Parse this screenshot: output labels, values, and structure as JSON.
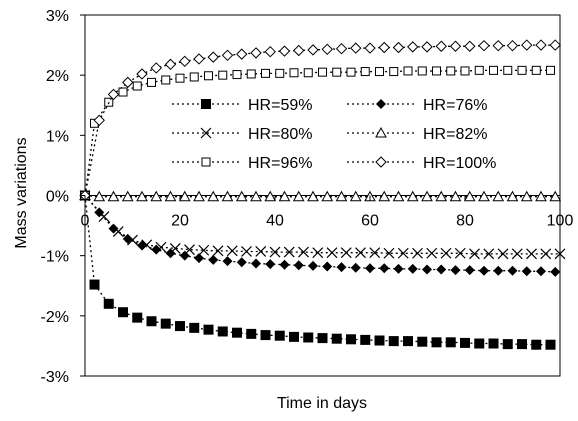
{
  "chart_data": {
    "type": "scatter",
    "title": "",
    "xlabel": "Time in days",
    "ylabel": "Mass variations",
    "xlim": [
      0,
      100
    ],
    "ylim": [
      -3,
      3
    ],
    "x_ticks": [
      0,
      20,
      40,
      60,
      80,
      100
    ],
    "x_tick_labels": [
      "0",
      "20",
      "40",
      "60",
      "80",
      "100"
    ],
    "y_ticks": [
      3,
      2,
      1,
      0,
      -1,
      -2,
      -3
    ],
    "y_tick_labels": [
      "3%",
      "2%",
      "1%",
      "0%",
      "-1%",
      "-2%",
      "-3%"
    ],
    "grid": false,
    "legend_position": "center",
    "series": [
      {
        "name": "HR=59%",
        "marker": "filled-square",
        "x": [
          0,
          2,
          5,
          8,
          11,
          14,
          17,
          20,
          23,
          26,
          29,
          32,
          35,
          38,
          41,
          44,
          47,
          50,
          53,
          56,
          59,
          62,
          65,
          68,
          71,
          74,
          77,
          80,
          83,
          86,
          89,
          92,
          95,
          98
        ],
        "y": [
          0,
          -1.48,
          -1.8,
          -1.94,
          -2.03,
          -2.09,
          -2.13,
          -2.17,
          -2.2,
          -2.23,
          -2.26,
          -2.28,
          -2.3,
          -2.32,
          -2.33,
          -2.35,
          -2.36,
          -2.37,
          -2.38,
          -2.39,
          -2.4,
          -2.41,
          -2.42,
          -2.42,
          -2.43,
          -2.44,
          -2.44,
          -2.45,
          -2.46,
          -2.46,
          -2.47,
          -2.47,
          -2.48,
          -2.48
        ]
      },
      {
        "name": "HR=76%",
        "marker": "filled-diamond",
        "x": [
          0,
          3,
          6,
          9,
          12,
          15,
          18,
          21,
          24,
          27,
          30,
          33,
          36,
          39,
          42,
          45,
          48,
          51,
          54,
          57,
          60,
          63,
          66,
          69,
          72,
          75,
          78,
          81,
          84,
          87,
          90,
          93,
          96,
          99
        ],
        "y": [
          0,
          -0.28,
          -0.55,
          -0.72,
          -0.83,
          -0.9,
          -0.96,
          -1.0,
          -1.04,
          -1.07,
          -1.09,
          -1.11,
          -1.13,
          -1.14,
          -1.15,
          -1.16,
          -1.17,
          -1.18,
          -1.19,
          -1.2,
          -1.21,
          -1.21,
          -1.22,
          -1.22,
          -1.23,
          -1.23,
          -1.24,
          -1.24,
          -1.25,
          -1.25,
          -1.25,
          -1.26,
          -1.26,
          -1.27
        ]
      },
      {
        "name": "HR=80%",
        "marker": "x",
        "x": [
          0,
          4,
          7,
          10,
          13,
          16,
          19,
          22,
          25,
          28,
          31,
          34,
          37,
          40,
          43,
          46,
          49,
          52,
          55,
          58,
          61,
          64,
          67,
          70,
          73,
          76,
          79,
          82,
          85,
          88,
          91,
          94,
          97,
          100
        ],
        "y": [
          0,
          -0.35,
          -0.6,
          -0.74,
          -0.82,
          -0.86,
          -0.88,
          -0.9,
          -0.91,
          -0.92,
          -0.92,
          -0.93,
          -0.93,
          -0.94,
          -0.94,
          -0.94,
          -0.95,
          -0.95,
          -0.95,
          -0.95,
          -0.95,
          -0.96,
          -0.96,
          -0.96,
          -0.96,
          -0.96,
          -0.96,
          -0.97,
          -0.97,
          -0.97,
          -0.97,
          -0.97,
          -0.97,
          -0.97
        ]
      },
      {
        "name": "HR=82%",
        "marker": "open-triangle",
        "x": [
          0,
          3,
          6,
          9,
          12,
          15,
          18,
          21,
          24,
          27,
          30,
          33,
          36,
          39,
          42,
          45,
          48,
          51,
          54,
          57,
          60,
          63,
          66,
          69,
          72,
          75,
          78,
          81,
          84,
          87,
          90,
          93,
          96,
          99
        ],
        "y": [
          0,
          -0.02,
          -0.02,
          -0.02,
          -0.02,
          -0.02,
          -0.02,
          -0.02,
          -0.02,
          -0.02,
          -0.02,
          -0.02,
          -0.02,
          -0.02,
          -0.02,
          -0.02,
          -0.02,
          -0.02,
          -0.02,
          -0.02,
          -0.02,
          -0.02,
          -0.02,
          -0.02,
          -0.02,
          -0.02,
          -0.02,
          -0.02,
          -0.02,
          -0.02,
          -0.02,
          -0.02,
          -0.02,
          -0.02
        ]
      },
      {
        "name": "HR=96%",
        "marker": "open-square",
        "x": [
          0,
          2,
          5,
          8,
          11,
          14,
          17,
          20,
          23,
          26,
          29,
          32,
          35,
          38,
          41,
          44,
          47,
          50,
          53,
          56,
          59,
          62,
          65,
          68,
          71,
          74,
          77,
          80,
          83,
          86,
          89,
          92,
          95,
          98
        ],
        "y": [
          0,
          1.2,
          1.55,
          1.72,
          1.82,
          1.88,
          1.92,
          1.95,
          1.97,
          1.99,
          2.0,
          2.01,
          2.02,
          2.03,
          2.03,
          2.04,
          2.04,
          2.05,
          2.05,
          2.05,
          2.06,
          2.06,
          2.06,
          2.07,
          2.07,
          2.07,
          2.07,
          2.07,
          2.08,
          2.08,
          2.08,
          2.08,
          2.08,
          2.08
        ]
      },
      {
        "name": "HR=100%",
        "marker": "open-diamond",
        "x": [
          0,
          3,
          6,
          9,
          12,
          15,
          18,
          21,
          24,
          27,
          30,
          33,
          36,
          39,
          42,
          45,
          48,
          51,
          54,
          57,
          60,
          63,
          66,
          69,
          72,
          75,
          78,
          81,
          84,
          87,
          90,
          93,
          96,
          99
        ],
        "y": [
          0,
          1.25,
          1.68,
          1.88,
          2.02,
          2.12,
          2.18,
          2.23,
          2.27,
          2.3,
          2.33,
          2.35,
          2.37,
          2.39,
          2.4,
          2.41,
          2.42,
          2.43,
          2.44,
          2.45,
          2.45,
          2.46,
          2.46,
          2.47,
          2.47,
          2.48,
          2.48,
          2.48,
          2.49,
          2.49,
          2.49,
          2.5,
          2.5,
          2.5
        ]
      }
    ]
  }
}
